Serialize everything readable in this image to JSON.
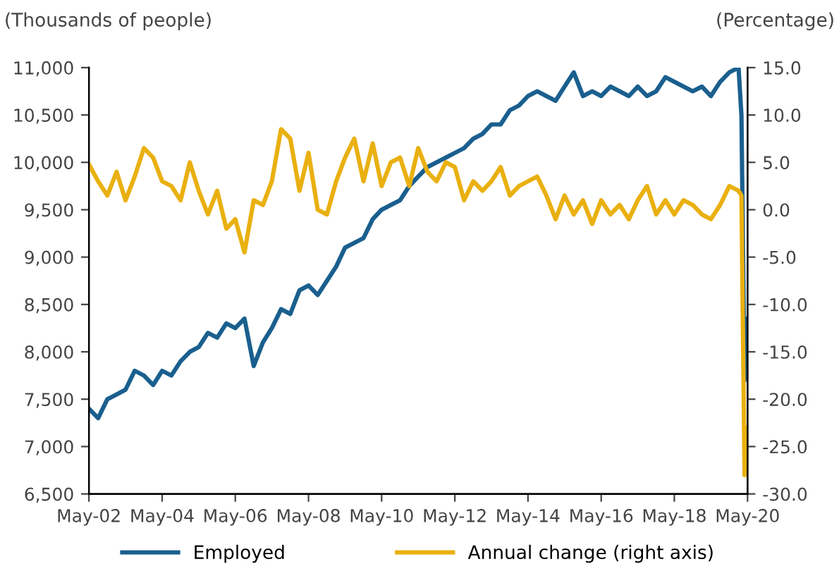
{
  "chart_data": {
    "type": "line",
    "ylabel": "(Thousands of people)",
    "y2label": "(Percentage)",
    "xlim": [
      "2002-05",
      "2020-05"
    ],
    "xticks": [
      {
        "value": "2002-05",
        "label": "May-02"
      },
      {
        "value": "2004-05",
        "label": "May-04"
      },
      {
        "value": "2006-05",
        "label": "May-06"
      },
      {
        "value": "2008-05",
        "label": "May-08"
      },
      {
        "value": "2010-05",
        "label": "May-10"
      },
      {
        "value": "2012-05",
        "label": "May-12"
      },
      {
        "value": "2014-05",
        "label": "May-14"
      },
      {
        "value": "2016-05",
        "label": "May-16"
      },
      {
        "value": "2018-05",
        "label": "May-18"
      },
      {
        "value": "2020-05",
        "label": "May-20"
      }
    ],
    "ylim": [
      6500,
      11000
    ],
    "yticks": [
      {
        "value": 6500,
        "label": "6,500"
      },
      {
        "value": 7000,
        "label": "7,000"
      },
      {
        "value": 7500,
        "label": "7,500"
      },
      {
        "value": 8000,
        "label": "8,000"
      },
      {
        "value": 8500,
        "label": "8,500"
      },
      {
        "value": 9000,
        "label": "9,000"
      },
      {
        "value": 9500,
        "label": "9,500"
      },
      {
        "value": 10000,
        "label": "10,000"
      },
      {
        "value": 10500,
        "label": "10,500"
      },
      {
        "value": 11000,
        "label": "11,000"
      }
    ],
    "y2lim": [
      -30,
      15
    ],
    "y2ticks": [
      {
        "value": -30,
        "label": "-30.0"
      },
      {
        "value": -25,
        "label": "-25.0"
      },
      {
        "value": -20,
        "label": "-20.0"
      },
      {
        "value": -15,
        "label": "-15.0"
      },
      {
        "value": -10,
        "label": "-10.0"
      },
      {
        "value": -5,
        "label": "-5.0"
      },
      {
        "value": 0,
        "label": "0.0"
      },
      {
        "value": 5,
        "label": "5.0"
      },
      {
        "value": 10,
        "label": "10.0"
      },
      {
        "value": 15,
        "label": "15.0"
      }
    ],
    "grid": false,
    "legend": "bottom",
    "series": [
      {
        "name": "Employed",
        "color": "#1a5f8e",
        "x": [
          "2002-05",
          "2002-08",
          "2002-11",
          "2003-02",
          "2003-05",
          "2003-08",
          "2003-11",
          "2004-02",
          "2004-05",
          "2004-08",
          "2004-11",
          "2005-02",
          "2005-05",
          "2005-08",
          "2005-11",
          "2006-02",
          "2006-05",
          "2006-08",
          "2006-11",
          "2007-02",
          "2007-05",
          "2007-08",
          "2007-11",
          "2008-02",
          "2008-05",
          "2008-08",
          "2008-11",
          "2009-02",
          "2009-05",
          "2009-08",
          "2009-11",
          "2010-02",
          "2010-05",
          "2010-08",
          "2010-11",
          "2011-02",
          "2011-05",
          "2011-08",
          "2011-11",
          "2012-02",
          "2012-05",
          "2012-08",
          "2012-11",
          "2013-02",
          "2013-05",
          "2013-08",
          "2013-11",
          "2014-02",
          "2014-05",
          "2014-08",
          "2014-11",
          "2015-02",
          "2015-05",
          "2015-08",
          "2015-11",
          "2016-02",
          "2016-05",
          "2016-08",
          "2016-11",
          "2017-02",
          "2017-05",
          "2017-08",
          "2017-11",
          "2018-02",
          "2018-05",
          "2018-08",
          "2018-11",
          "2019-02",
          "2019-05",
          "2019-08",
          "2019-11",
          "2020-02",
          "2020-03",
          "2020-04",
          "2020-05"
        ],
        "values": [
          7400,
          7300,
          7500,
          7550,
          7600,
          7800,
          7750,
          7650,
          7800,
          7750,
          7900,
          8000,
          8050,
          8200,
          8150,
          8300,
          8250,
          8350,
          7850,
          8100,
          8250,
          8450,
          8400,
          8650,
          8700,
          8600,
          8750,
          8900,
          9100,
          9150,
          9200,
          9400,
          9500,
          9550,
          9600,
          9750,
          9850,
          9950,
          10000,
          10050,
          10100,
          10150,
          10250,
          10300,
          10400,
          10400,
          10550,
          10600,
          10700,
          10750,
          10700,
          10650,
          10800,
          10950,
          10700,
          10750,
          10700,
          10800,
          10750,
          10700,
          10800,
          10700,
          10750,
          10900,
          10850,
          10800,
          10750,
          10800,
          10700,
          10850,
          10950,
          11000,
          10500,
          7700,
          8350
        ]
      },
      {
        "name": "Annual change (right axis)",
        "color": "#e9b010",
        "axis": "y2",
        "x": [
          "2002-05",
          "2002-08",
          "2002-11",
          "2003-02",
          "2003-05",
          "2003-08",
          "2003-11",
          "2004-02",
          "2004-05",
          "2004-08",
          "2004-11",
          "2005-02",
          "2005-05",
          "2005-08",
          "2005-11",
          "2006-02",
          "2006-05",
          "2006-08",
          "2006-11",
          "2007-02",
          "2007-05",
          "2007-08",
          "2007-11",
          "2008-02",
          "2008-05",
          "2008-08",
          "2008-11",
          "2009-02",
          "2009-05",
          "2009-08",
          "2009-11",
          "2010-02",
          "2010-05",
          "2010-08",
          "2010-11",
          "2011-02",
          "2011-05",
          "2011-08",
          "2011-11",
          "2012-02",
          "2012-05",
          "2012-08",
          "2012-11",
          "2013-02",
          "2013-05",
          "2013-08",
          "2013-11",
          "2014-02",
          "2014-05",
          "2014-08",
          "2014-11",
          "2015-02",
          "2015-05",
          "2015-08",
          "2015-11",
          "2016-02",
          "2016-05",
          "2016-08",
          "2016-11",
          "2017-02",
          "2017-05",
          "2017-08",
          "2017-11",
          "2018-02",
          "2018-05",
          "2018-08",
          "2018-11",
          "2019-02",
          "2019-05",
          "2019-08",
          "2019-11",
          "2020-02",
          "2020-03",
          "2020-04",
          "2020-05"
        ],
        "values": [
          4.8,
          3.0,
          1.5,
          4.0,
          1.0,
          3.5,
          6.5,
          5.5,
          3.0,
          2.5,
          1.0,
          5.0,
          2.0,
          -0.5,
          2.0,
          -2.0,
          -1.0,
          -4.5,
          1.0,
          0.5,
          3.0,
          8.5,
          7.5,
          2.0,
          6.0,
          0.0,
          -0.5,
          3.0,
          5.5,
          7.5,
          3.0,
          7.0,
          2.5,
          5.0,
          5.5,
          2.5,
          6.5,
          4.0,
          3.0,
          5.0,
          4.5,
          1.0,
          3.0,
          2.0,
          3.0,
          4.5,
          1.5,
          2.5,
          3.0,
          3.5,
          1.5,
          -1.0,
          1.5,
          -0.5,
          1.0,
          -1.5,
          1.0,
          -0.5,
          0.5,
          -1.0,
          1.0,
          2.5,
          -0.5,
          1.0,
          -0.5,
          1.0,
          0.5,
          -0.5,
          -1.0,
          0.5,
          2.5,
          2.0,
          1.5,
          -28.0,
          -23.0
        ]
      }
    ]
  }
}
